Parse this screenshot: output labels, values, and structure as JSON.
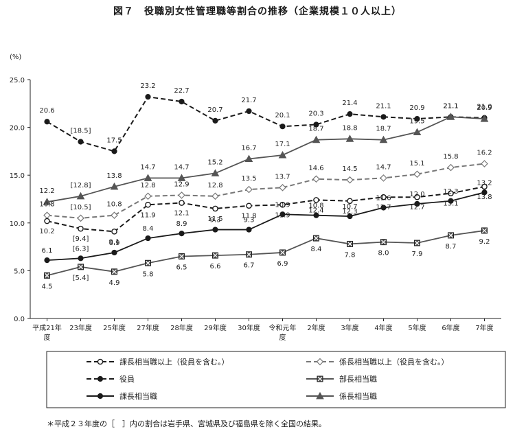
{
  "chart_data": {
    "type": "line",
    "title": "図７　役職別女性管理職等割合の推移（企業規模１０人以上）",
    "ylabel": "(%)",
    "ylim": [
      0,
      25
    ],
    "y_ticks": [
      "0.0",
      "5.0",
      "10.0",
      "15.0",
      "20.0",
      "25.0"
    ],
    "categories": [
      [
        "平成21年",
        "度"
      ],
      [
        "23年度"
      ],
      [
        "25年度"
      ],
      [
        "27年度"
      ],
      [
        "28年度"
      ],
      [
        "29年度"
      ],
      [
        "30年度"
      ],
      [
        "令和元年",
        "度"
      ],
      [
        "2年度"
      ],
      [
        "3年度"
      ],
      [
        "4年度"
      ],
      [
        "5年度"
      ],
      [
        "6年度"
      ],
      [
        "7年度"
      ]
    ],
    "grid": false,
    "legend_placement": "bottom",
    "series": [
      {
        "name": "役員",
        "style": "dashed",
        "marker": "dot",
        "color": "#1a1a1a",
        "values": [
          20.6,
          18.5,
          17.5,
          23.2,
          22.7,
          20.7,
          21.7,
          20.1,
          20.3,
          21.4,
          21.1,
          20.9,
          21.1,
          21.0
        ],
        "labels": [
          "20.6",
          "[18.5]",
          "17.5",
          "23.2",
          "22.7",
          "20.7",
          "21.7",
          "20.1",
          "20.3",
          "21.4",
          "21.1",
          "20.9",
          "21.1",
          "21.0"
        ]
      },
      {
        "name": "係長相当職",
        "style": "solid",
        "marker": "triangle",
        "color": "#555555",
        "values": [
          12.2,
          12.8,
          13.8,
          14.7,
          14.7,
          15.2,
          16.7,
          17.1,
          18.7,
          18.8,
          18.7,
          19.5,
          21.1,
          20.9
        ],
        "labels": [
          "12.2",
          "[12.8]",
          "13.8",
          "14.7",
          "14.7",
          "15.2",
          "16.7",
          "17.1",
          "18.7",
          "18.8",
          "18.7",
          "19.5",
          "21.1",
          "20.9"
        ]
      },
      {
        "name": "係長相当職以上（役員を含む。）",
        "style": "dashed",
        "marker": "diamond",
        "color": "#777777",
        "values": [
          10.8,
          10.5,
          10.8,
          12.8,
          12.9,
          12.8,
          13.5,
          13.7,
          14.6,
          14.5,
          14.7,
          15.1,
          15.8,
          16.2
        ],
        "labels": [
          "10.8",
          "[10.5]",
          "10.8",
          "12.8",
          "12.9",
          "12.8",
          "13.5",
          "13.7",
          "14.6",
          "14.5",
          "14.7",
          "15.1",
          "15.8",
          "16.2"
        ]
      },
      {
        "name": "課長相当職以上（役員を含む。）",
        "style": "dashed",
        "marker": "circle",
        "color": "#1a1a1a",
        "values": [
          10.2,
          9.4,
          9.1,
          11.9,
          12.1,
          11.5,
          11.8,
          11.9,
          12.4,
          12.3,
          12.7,
          12.7,
          13.1,
          13.8
        ],
        "labels": [
          "10.2",
          "[9.4]",
          "9.1",
          "11.9",
          "12.1",
          "11.5",
          "11.8",
          "11.9",
          "12.4",
          "12.3",
          "12.7",
          "12.7",
          "13.1",
          "13.8"
        ]
      },
      {
        "name": "課長相当職",
        "style": "solid",
        "marker": "dot",
        "color": "#1a1a1a",
        "values": [
          6.1,
          6.3,
          6.9,
          8.4,
          8.9,
          9.3,
          9.3,
          10.9,
          10.8,
          10.7,
          11.6,
          12.0,
          12.3,
          13.2
        ],
        "labels": [
          "6.1",
          "[6.3]",
          "6.9",
          "8.4",
          "8.9",
          "9.3",
          "9.3",
          "10.9",
          "10.8",
          "10.7",
          "11.6",
          "12.0",
          "12.3",
          "13.2"
        ]
      },
      {
        "name": "部長相当職",
        "style": "solid",
        "marker": "xsquare",
        "color": "#555555",
        "values": [
          4.5,
          5.4,
          4.9,
          5.8,
          6.5,
          6.6,
          6.7,
          6.9,
          8.4,
          7.8,
          8.0,
          7.9,
          8.7,
          9.2
        ],
        "labels": [
          "4.5",
          "[5.4]",
          "4.9",
          "5.8",
          "6.5",
          "6.6",
          "6.7",
          "6.9",
          "8.4",
          "7.8",
          "8.0",
          "7.9",
          "8.7",
          "9.2"
        ]
      }
    ],
    "legend": [
      [
        "課長相当職以上（役員を含む。）",
        "係長相当職以上（役員を含む。）"
      ],
      [
        "役員",
        "部長相当職"
      ],
      [
        "課長相当職",
        "係長相当職"
      ]
    ]
  },
  "footnote": "＊平成２３年度の［　］内の割合は岩手県、宮城県及び福島県を除く全国の結果。"
}
